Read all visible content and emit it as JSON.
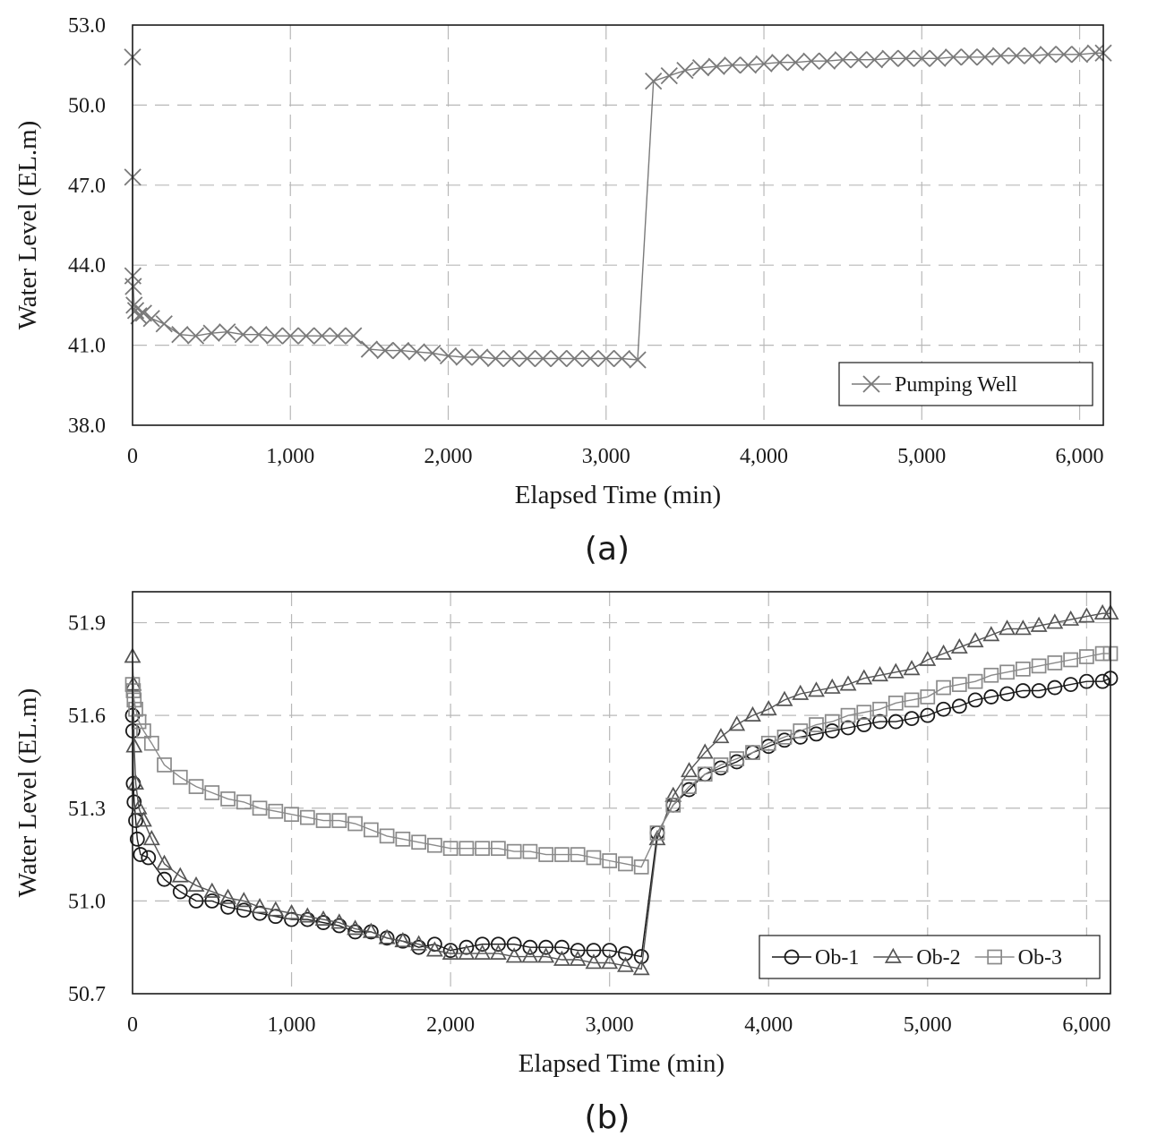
{
  "chart_data": [
    {
      "id": "a",
      "type": "line",
      "caption": "(a)",
      "xlabel": "Elapsed Time (min)",
      "ylabel": "Water Level (EL.m)",
      "xlim": [
        0,
        6150
      ],
      "ylim": [
        38.0,
        53.0
      ],
      "xticks": [
        0,
        1000,
        2000,
        3000,
        4000,
        5000,
        6000
      ],
      "xtick_labels": [
        "0",
        "1,000",
        "2,000",
        "3,000",
        "4,000",
        "5,000",
        "6,000"
      ],
      "yticks": [
        38.0,
        41.0,
        44.0,
        47.0,
        50.0,
        53.0
      ],
      "ytick_labels": [
        "38.0",
        "41.0",
        "44.0",
        "47.0",
        "50.0",
        "53.0"
      ],
      "grid": true,
      "legend_position": "bottom-right",
      "series": [
        {
          "name": "Pumping Well",
          "marker": "x",
          "color": "#7a7a7a",
          "x": [
            0,
            1,
            2,
            5,
            10,
            20,
            40,
            70,
            120,
            200,
            300,
            400,
            500,
            600,
            700,
            800,
            900,
            1000,
            1100,
            1200,
            1300,
            1400,
            1500,
            1600,
            1700,
            1800,
            1900,
            2000,
            2100,
            2200,
            2300,
            2400,
            2500,
            2600,
            2700,
            2800,
            2900,
            3000,
            3100,
            3200,
            3300,
            3400,
            3500,
            3600,
            3700,
            3800,
            3900,
            4000,
            4100,
            4200,
            4300,
            4400,
            4500,
            4600,
            4700,
            4800,
            4900,
            5000,
            5100,
            5200,
            5300,
            5400,
            5500,
            5600,
            5700,
            5800,
            5900,
            6000,
            6100,
            6150
          ],
          "y": [
            51.8,
            47.3,
            43.6,
            43.2,
            42.5,
            42.3,
            42.1,
            42.2,
            42.0,
            41.8,
            41.4,
            41.35,
            41.45,
            41.5,
            41.4,
            41.4,
            41.35,
            41.35,
            41.35,
            41.35,
            41.35,
            41.35,
            40.85,
            40.8,
            40.8,
            40.75,
            40.7,
            40.6,
            40.55,
            40.55,
            40.5,
            40.5,
            40.5,
            40.5,
            40.5,
            40.5,
            40.5,
            40.5,
            40.5,
            40.45,
            50.9,
            51.1,
            51.3,
            51.4,
            51.45,
            51.5,
            51.5,
            51.55,
            51.6,
            51.6,
            51.65,
            51.65,
            51.7,
            51.7,
            51.7,
            51.75,
            51.75,
            51.75,
            51.75,
            51.8,
            51.8,
            51.8,
            51.85,
            51.85,
            51.85,
            51.9,
            51.9,
            51.9,
            51.95,
            51.95
          ]
        }
      ]
    },
    {
      "id": "b",
      "type": "line",
      "caption": "(b)",
      "xlabel": "Elapsed Time (min)",
      "ylabel": "Water Level (EL.m)",
      "xlim": [
        0,
        6150
      ],
      "ylim": [
        50.7,
        52.0
      ],
      "xticks": [
        0,
        1000,
        2000,
        3000,
        4000,
        5000,
        6000
      ],
      "xtick_labels": [
        "0",
        "1,000",
        "2,000",
        "3,000",
        "4,000",
        "5,000",
        "6,000"
      ],
      "yticks": [
        50.7,
        51.0,
        51.3,
        51.6,
        51.9
      ],
      "ytick_labels": [
        "50.7",
        "51.0",
        "51.3",
        "51.6",
        "51.9"
      ],
      "grid": true,
      "legend_position": "bottom-right",
      "series": [
        {
          "name": "Ob-1",
          "marker": "circle",
          "color": "#1a1a1a",
          "x": [
            0,
            2,
            5,
            10,
            20,
            30,
            50,
            100,
            200,
            300,
            400,
            500,
            600,
            700,
            800,
            900,
            1000,
            1100,
            1200,
            1300,
            1400,
            1500,
            1600,
            1700,
            1800,
            1900,
            2000,
            2100,
            2200,
            2300,
            2400,
            2500,
            2600,
            2700,
            2800,
            2900,
            3000,
            3100,
            3200,
            3300,
            3400,
            3500,
            3600,
            3700,
            3800,
            3900,
            4000,
            4100,
            4200,
            4300,
            4400,
            4500,
            4600,
            4700,
            4800,
            4900,
            5000,
            5100,
            5200,
            5300,
            5400,
            5500,
            5600,
            5700,
            5800,
            5900,
            6000,
            6100,
            6150
          ],
          "y": [
            51.6,
            51.55,
            51.38,
            51.32,
            51.26,
            51.2,
            51.15,
            51.14,
            51.07,
            51.03,
            51.0,
            51.0,
            50.98,
            50.97,
            50.96,
            50.95,
            50.94,
            50.94,
            50.93,
            50.92,
            50.9,
            50.9,
            50.88,
            50.87,
            50.85,
            50.86,
            50.84,
            50.85,
            50.86,
            50.86,
            50.86,
            50.85,
            50.85,
            50.85,
            50.84,
            50.84,
            50.84,
            50.83,
            50.82,
            51.22,
            51.31,
            51.36,
            51.41,
            51.43,
            51.45,
            51.48,
            51.5,
            51.52,
            51.53,
            51.54,
            51.55,
            51.56,
            51.57,
            51.58,
            51.58,
            51.59,
            51.6,
            51.62,
            51.63,
            51.65,
            51.66,
            51.67,
            51.68,
            51.68,
            51.69,
            51.7,
            51.71,
            51.71,
            51.72
          ]
        },
        {
          "name": "Ob-2",
          "marker": "triangle",
          "color": "#555555",
          "x": [
            0,
            5,
            10,
            20,
            40,
            70,
            120,
            200,
            300,
            400,
            500,
            600,
            700,
            800,
            900,
            1000,
            1100,
            1200,
            1300,
            1400,
            1500,
            1600,
            1700,
            1800,
            1900,
            2000,
            2100,
            2200,
            2300,
            2400,
            2500,
            2600,
            2700,
            2800,
            2900,
            3000,
            3100,
            3200,
            3300,
            3400,
            3500,
            3600,
            3700,
            3800,
            3900,
            4000,
            4100,
            4200,
            4300,
            4400,
            4500,
            4600,
            4700,
            4800,
            4900,
            5000,
            5100,
            5200,
            5300,
            5400,
            5500,
            5600,
            5700,
            5800,
            5900,
            6000,
            6100,
            6150
          ],
          "y": [
            51.79,
            51.7,
            51.5,
            51.38,
            51.3,
            51.26,
            51.2,
            51.12,
            51.08,
            51.05,
            51.03,
            51.01,
            51.0,
            50.98,
            50.97,
            50.96,
            50.95,
            50.94,
            50.93,
            50.91,
            50.9,
            50.88,
            50.87,
            50.86,
            50.84,
            50.83,
            50.83,
            50.83,
            50.83,
            50.82,
            50.82,
            50.82,
            50.81,
            50.81,
            50.8,
            50.8,
            50.79,
            50.78,
            51.2,
            51.34,
            51.42,
            51.48,
            51.53,
            51.57,
            51.6,
            51.62,
            51.65,
            51.67,
            51.68,
            51.69,
            51.7,
            51.72,
            51.73,
            51.74,
            51.75,
            51.78,
            51.8,
            51.82,
            51.84,
            51.86,
            51.88,
            51.88,
            51.89,
            51.9,
            51.91,
            51.92,
            51.93,
            51.93
          ]
        },
        {
          "name": "Ob-3",
          "marker": "square",
          "color": "#8a8a8a",
          "x": [
            0,
            5,
            10,
            20,
            40,
            70,
            120,
            200,
            300,
            400,
            500,
            600,
            700,
            800,
            900,
            1000,
            1100,
            1200,
            1300,
            1400,
            1500,
            1600,
            1700,
            1800,
            1900,
            2000,
            2100,
            2200,
            2300,
            2400,
            2500,
            2600,
            2700,
            2800,
            2900,
            3000,
            3100,
            3200,
            3300,
            3400,
            3500,
            3600,
            3700,
            3800,
            3900,
            4000,
            4100,
            4200,
            4300,
            4400,
            4500,
            4600,
            4700,
            4800,
            4900,
            5000,
            5100,
            5200,
            5300,
            5400,
            5500,
            5600,
            5700,
            5800,
            5900,
            6000,
            6100,
            6150
          ],
          "y": [
            51.7,
            51.68,
            51.65,
            51.62,
            51.58,
            51.55,
            51.51,
            51.44,
            51.4,
            51.37,
            51.35,
            51.33,
            51.32,
            51.3,
            51.29,
            51.28,
            51.27,
            51.26,
            51.26,
            51.25,
            51.23,
            51.21,
            51.2,
            51.19,
            51.18,
            51.17,
            51.17,
            51.17,
            51.17,
            51.16,
            51.16,
            51.15,
            51.15,
            51.15,
            51.14,
            51.13,
            51.12,
            51.11,
            51.22,
            51.31,
            51.37,
            51.41,
            51.44,
            51.46,
            51.48,
            51.51,
            51.53,
            51.55,
            51.57,
            51.58,
            51.6,
            51.61,
            51.62,
            51.64,
            51.65,
            51.66,
            51.69,
            51.7,
            51.71,
            51.73,
            51.74,
            51.75,
            51.76,
            51.77,
            51.78,
            51.79,
            51.8,
            51.8
          ]
        }
      ]
    }
  ]
}
